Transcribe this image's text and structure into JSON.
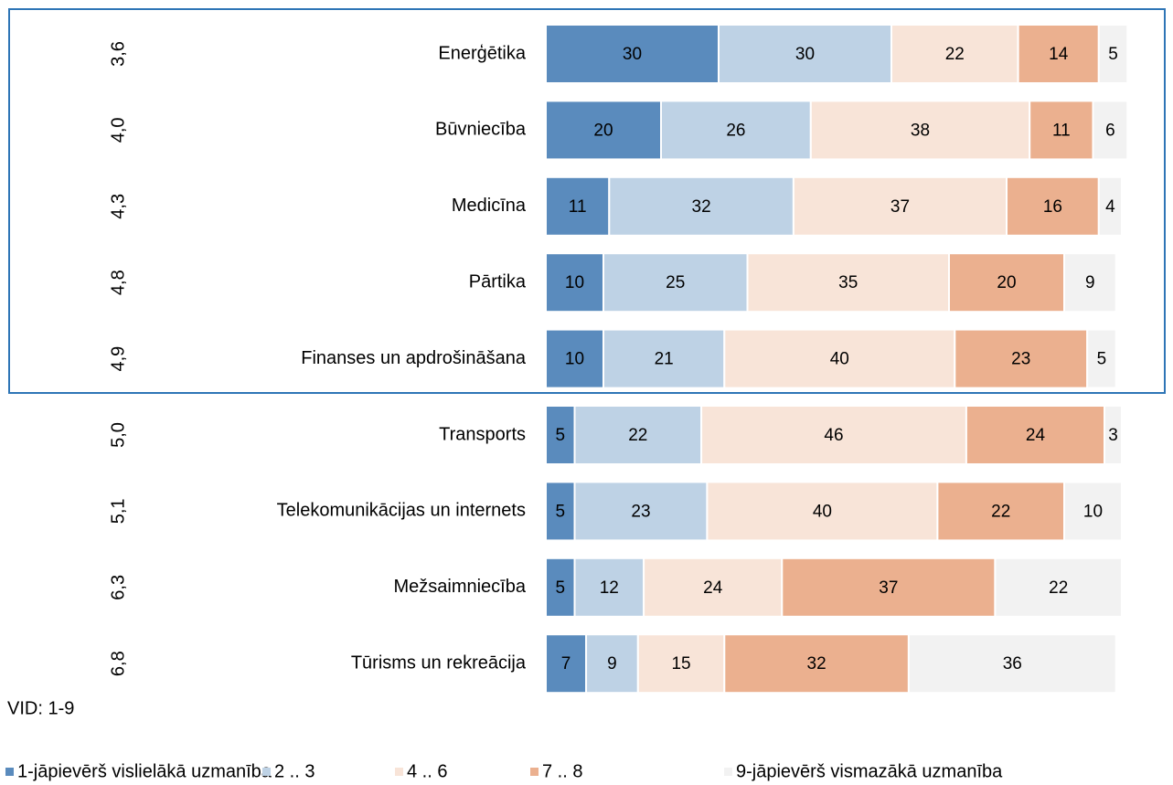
{
  "chart_data": {
    "type": "stacked_bar_horizontal",
    "categories": [
      "Enerģētika",
      "Būvniecība",
      "Medicīna",
      "Pārtika",
      "Finanses un apdrošināšana",
      "Transports",
      "Telekomunikācijas un internets",
      "Mežsaimniecība",
      "Tūrisms un rekreācija"
    ],
    "means": [
      "3,6",
      "4,0",
      "4,3",
      "4,8",
      "4,9",
      "5,0",
      "5,1",
      "6,3",
      "6,8"
    ],
    "annotation": "VID: 1-9",
    "xlim": [
      0,
      100
    ],
    "series": [
      {
        "name": "1-jāpievērš vislielākā uzmanība",
        "color": "#5a8bbd",
        "values": [
          30,
          20,
          11,
          10,
          10,
          5,
          5,
          5,
          7
        ]
      },
      {
        "name": "2 .. 3",
        "color": "#bed2e5",
        "values": [
          30,
          26,
          32,
          25,
          21,
          22,
          23,
          12,
          9
        ]
      },
      {
        "name": "4 .. 6",
        "color": "#f8e4d8",
        "values": [
          22,
          38,
          37,
          35,
          40,
          46,
          40,
          24,
          15
        ]
      },
      {
        "name": "7 .. 8",
        "color": "#ebb08f",
        "values": [
          14,
          11,
          16,
          20,
          23,
          24,
          22,
          37,
          32
        ]
      },
      {
        "name": "9-jāpievērš vismazākā uzmanība",
        "color": "#f2f2f2",
        "values": [
          5,
          6,
          4,
          9,
          5,
          3,
          10,
          22,
          36
        ]
      }
    ]
  }
}
